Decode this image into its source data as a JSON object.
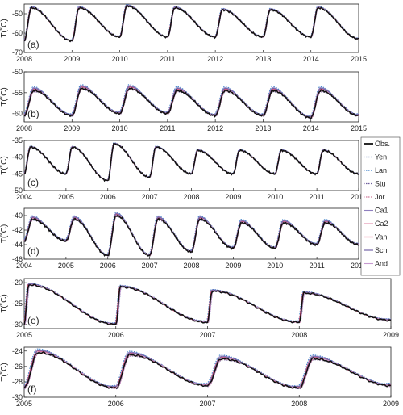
{
  "chart_data": [
    {
      "type": "line",
      "panel_label": "(a)",
      "ylabel": "T(˚C)",
      "xlim": [
        2008,
        2015
      ],
      "ylim": [
        -70,
        -45
      ],
      "xticks": [
        "2008",
        "2009",
        "2010",
        "2011",
        "2012",
        "2013",
        "2014",
        "2015"
      ],
      "yticks": [
        "-50",
        "-60",
        "-70"
      ],
      "model_spread": 1.0,
      "seasonal": {
        "start_year": 2008,
        "n_cycles": 7,
        "peaks": [
          -47,
          -47,
          -46,
          -47,
          -48,
          -48,
          -47
        ],
        "peak_phase": 0.15,
        "troughs": [
          -64,
          -62,
          -62,
          -62,
          -62,
          -62,
          -63
        ]
      }
    },
    {
      "type": "line",
      "panel_label": "(b)",
      "ylabel": "T(˚C)",
      "xlim": [
        2008,
        2015
      ],
      "ylim": [
        -62,
        -50
      ],
      "xticks": [
        "2008",
        "2009",
        "2010",
        "2011",
        "2012",
        "2013",
        "2014",
        "2015"
      ],
      "yticks": [
        "-50",
        "-55",
        "-60"
      ],
      "model_spread": 1.2,
      "seasonal": {
        "start_year": 2008,
        "n_cycles": 7,
        "peaks": [
          -54.5,
          -54,
          -54,
          -54.5,
          -54.5,
          -54.5,
          -54.5
        ],
        "peak_phase": 0.2,
        "troughs": [
          -60.5,
          -60,
          -60,
          -60.5,
          -60.5,
          -61,
          -60.5
        ]
      }
    },
    {
      "type": "line",
      "panel_label": "(c)",
      "ylabel": "T(˚C)",
      "xlim": [
        2004,
        2012
      ],
      "ylim": [
        -50,
        -35
      ],
      "xticks": [
        "2004",
        "2005",
        "2006",
        "2007",
        "2008",
        "2009",
        "2010",
        "2011",
        "2012"
      ],
      "yticks": [
        "-35",
        "-40",
        "-45",
        "-50"
      ],
      "model_spread": 0.4,
      "seasonal": {
        "start_year": 2004,
        "n_cycles": 8,
        "peaks": [
          -37,
          -37,
          -36,
          -37,
          -38,
          -38,
          -38,
          -38
        ],
        "peak_phase": 0.15,
        "troughs": [
          -45,
          -47,
          -46,
          -45,
          -45,
          -45,
          -45,
          -45
        ]
      }
    },
    {
      "type": "line",
      "panel_label": "(d)",
      "ylabel": "T(˚C)",
      "xlim": [
        2004,
        2012
      ],
      "ylim": [
        -46,
        -39
      ],
      "xticks": [
        "2004",
        "2005",
        "2006",
        "2007",
        "2008",
        "2009",
        "2010",
        "2011",
        "2012"
      ],
      "yticks": [
        "-40",
        "-42",
        "-44",
        "-46"
      ],
      "model_spread": 0.6,
      "seasonal": {
        "start_year": 2004,
        "n_cycles": 8,
        "peaks": [
          -40.5,
          -40.5,
          -40,
          -40.5,
          -40.5,
          -41,
          -41,
          -41
        ],
        "peak_phase": 0.2,
        "troughs": [
          -43.5,
          -45.5,
          -45.5,
          -45,
          -44.5,
          -44.5,
          -44,
          -44
        ]
      }
    },
    {
      "type": "line",
      "panel_label": "(e)",
      "ylabel": "T(˚C)",
      "xlim": [
        2005,
        2009
      ],
      "ylim": [
        -31,
        -19
      ],
      "xticks": [
        "2005",
        "2006",
        "2007",
        "2008",
        "2009"
      ],
      "yticks": [
        "-20",
        "-25",
        "-30"
      ],
      "model_spread": 0.5,
      "seasonal": {
        "start_year": 2005,
        "n_cycles": 4,
        "peaks": [
          -20.5,
          -21,
          -22,
          -22.5
        ],
        "peak_phase": 0.05,
        "troughs": [
          -30,
          -29.5,
          -29.5,
          -29
        ]
      }
    },
    {
      "type": "line",
      "panel_label": "(f)",
      "ylabel": "T(˚C)",
      "xlim": [
        2005,
        2009
      ],
      "ylim": [
        -30,
        -23.5
      ],
      "xticks": [
        "2005",
        "2006",
        "2007",
        "2008",
        "2009"
      ],
      "yticks": [
        "-24",
        "-26",
        "-28",
        "-30"
      ],
      "model_spread": 0.6,
      "seasonal": {
        "start_year": 2005,
        "n_cycles": 4,
        "peaks": [
          -24.2,
          -24.5,
          -25,
          -25
        ],
        "peak_phase": 0.15,
        "troughs": [
          -28.8,
          -28.5,
          -28.8,
          -28.5
        ]
      }
    }
  ],
  "legend": {
    "placement": "right",
    "entries": [
      {
        "name": "Obs.",
        "color": "#111111",
        "dash": "solid",
        "width": 1.5
      },
      {
        "name": "Yen",
        "color": "#4f6fb0",
        "dash": "dotted",
        "width": 1.0
      },
      {
        "name": "Lan",
        "color": "#3b7fc9",
        "dash": "dotted",
        "width": 1.0
      },
      {
        "name": "Stu",
        "color": "#6d5d9c",
        "dash": "dotted",
        "width": 1.0
      },
      {
        "name": "Jor",
        "color": "#d07a9a",
        "dash": "dotted",
        "width": 1.0
      },
      {
        "name": "Ca1",
        "color": "#8e7fbf",
        "dash": "solid",
        "width": 0.8
      },
      {
        "name": "Ca2",
        "color": "#e08aa8",
        "dash": "solid",
        "width": 0.8
      },
      {
        "name": "Van",
        "color": "#d9486c",
        "dash": "solid",
        "width": 0.9
      },
      {
        "name": "Sch",
        "color": "#7466a8",
        "dash": "solid",
        "width": 0.9
      },
      {
        "name": "And",
        "color": "#c79ad0",
        "dash": "solid",
        "width": 0.8
      }
    ]
  }
}
